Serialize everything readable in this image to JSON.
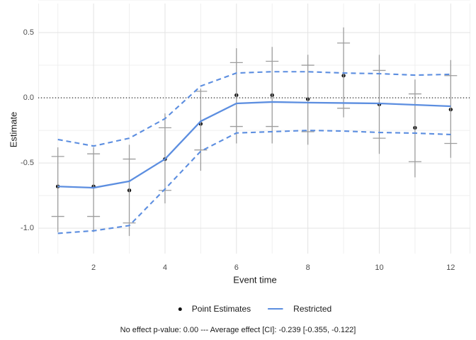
{
  "y_axis": {
    "title": "Estimate",
    "ticks": [
      0.5,
      0.0,
      -0.5,
      -1.0
    ],
    "tick_labels": [
      "0.5",
      "0.0",
      "-0.5",
      "-1.0"
    ]
  },
  "x_axis": {
    "title": "Event time",
    "ticks": [
      2,
      4,
      6,
      8,
      10,
      12
    ],
    "tick_labels": [
      "2",
      "4",
      "6",
      "8",
      "10",
      "12"
    ]
  },
  "legend": {
    "items": [
      {
        "label": "Point Estimates",
        "marker": "point",
        "color": "#111111"
      },
      {
        "label": "Restricted",
        "marker": "line",
        "color": "#5c8ee0"
      }
    ]
  },
  "caption": "No effect p-value: 0.00 --- Average effect [CI]: -0.239 [-0.355, -0.122]",
  "colors": {
    "accent_blue": "#5c8ee0",
    "point_black": "#111111",
    "error_bar_gray": "#9d9d9d",
    "grid_major": "#e3e3e3",
    "grid_minor": "#efefef",
    "zero_line": "#000000",
    "tick_text": "#4d4d4d"
  },
  "chart_data": {
    "type": "line",
    "title": "",
    "xlabel": "Event time",
    "ylabel": "Estimate",
    "x": [
      1,
      2,
      3,
      4,
      5,
      6,
      7,
      8,
      9,
      10,
      11,
      12
    ],
    "xlim": [
      0.451,
      12.549
    ],
    "ylim": [
      -1.195,
      0.723
    ],
    "x_ticks": [
      2,
      4,
      6,
      8,
      10,
      12
    ],
    "x_minor": [
      1,
      3,
      5,
      7,
      9,
      11
    ],
    "y_ticks": [
      0.5,
      0.0,
      -0.5,
      -1.0
    ],
    "y_minor": [
      0.75,
      0.25,
      -0.25,
      -0.75
    ],
    "zero_line": 0,
    "grid": true,
    "legend_position": "bottom",
    "series": [
      {
        "name": "Point Estimates",
        "type": "scatter",
        "color": "#111111",
        "values": [
          -0.68,
          -0.68,
          -0.71,
          -0.47,
          -0.2,
          0.02,
          0.02,
          -0.01,
          0.17,
          -0.05,
          -0.23,
          -0.09
        ]
      },
      {
        "name": "Estimate CI outer",
        "type": "errorbar_line",
        "color": "#9d9d9d",
        "high": [
          -0.38,
          -0.38,
          -0.36,
          -0.12,
          0.07,
          0.38,
          0.39,
          0.33,
          0.54,
          0.33,
          0.14,
          0.29
        ],
        "low": [
          -1.03,
          -1.03,
          -1.06,
          -0.81,
          -0.56,
          -0.35,
          -0.35,
          -0.36,
          -0.15,
          -0.43,
          -0.61,
          -0.46
        ]
      },
      {
        "name": "Estimate CI inner",
        "type": "errorbar_capped",
        "color": "#9d9d9d",
        "high": [
          -0.45,
          -0.43,
          -0.47,
          -0.23,
          0.05,
          0.27,
          0.28,
          0.25,
          0.42,
          0.21,
          0.03,
          0.17
        ],
        "low": [
          -0.91,
          -0.91,
          -0.96,
          -0.71,
          -0.4,
          -0.22,
          -0.22,
          -0.26,
          -0.08,
          -0.31,
          -0.49,
          -0.35
        ]
      },
      {
        "name": "Restricted CI upper",
        "type": "line_dashed",
        "color": "#5c8ee0",
        "values": [
          -0.32,
          -0.37,
          -0.31,
          -0.16,
          0.09,
          0.19,
          0.2,
          0.2,
          0.19,
          0.185,
          0.174,
          0.18
        ]
      },
      {
        "name": "Restricted CI lower",
        "type": "line_dashed",
        "color": "#5c8ee0",
        "values": [
          -1.04,
          -1.02,
          -0.98,
          -0.7,
          -0.41,
          -0.27,
          -0.26,
          -0.25,
          -0.255,
          -0.266,
          -0.271,
          -0.282
        ]
      },
      {
        "name": "Restricted",
        "type": "line",
        "color": "#5c8ee0",
        "values": [
          -0.68,
          -0.69,
          -0.64,
          -0.47,
          -0.18,
          -0.043,
          -0.032,
          -0.037,
          -0.04,
          -0.043,
          -0.054,
          -0.065
        ]
      }
    ]
  }
}
